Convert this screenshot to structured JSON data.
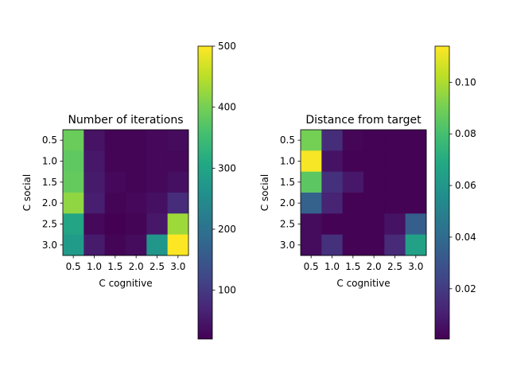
{
  "chart_data": [
    {
      "type": "heatmap",
      "title": "Number of iterations",
      "xlabel": "C cognitive",
      "ylabel": "C social",
      "x_ticks": [
        "0.5",
        "1.0",
        "1.5",
        "2.0",
        "2.5",
        "3.0"
      ],
      "y_ticks": [
        "0.5",
        "1.0",
        "1.5",
        "2.0",
        "2.5",
        "3.0"
      ],
      "colormap": "viridis",
      "colorbar": {
        "min": 20,
        "max": 500,
        "ticks": [
          100,
          200,
          300,
          400,
          500
        ],
        "tick_labels": [
          "100",
          "200",
          "300",
          "400",
          "500"
        ]
      },
      "values": [
        [
          390,
          45,
          25,
          25,
          30,
          35
        ],
        [
          380,
          50,
          25,
          25,
          30,
          30
        ],
        [
          385,
          55,
          30,
          25,
          30,
          40
        ],
        [
          420,
          60,
          25,
          30,
          40,
          80
        ],
        [
          300,
          30,
          20,
          25,
          50,
          430
        ],
        [
          280,
          55,
          25,
          35,
          270,
          500
        ]
      ]
    },
    {
      "type": "heatmap",
      "title": "Distance from target",
      "xlabel": "C cognitive",
      "ylabel": "C social",
      "x_ticks": [
        "0.5",
        "1.0",
        "1.5",
        "2.0",
        "2.5",
        "3.0"
      ],
      "y_ticks": [
        "0.5",
        "1.0",
        "1.5",
        "2.0",
        "2.5",
        "3.0"
      ],
      "colormap": "viridis",
      "colorbar": {
        "min": 0.0005,
        "max": 0.114,
        "ticks": [
          0.02,
          0.04,
          0.06,
          0.08,
          0.1
        ],
        "tick_labels": [
          "0.02",
          "0.04",
          "0.06",
          "0.08",
          "0.10"
        ]
      },
      "values": [
        [
          0.09,
          0.015,
          0.002,
          0.001,
          0.001,
          0.001
        ],
        [
          0.113,
          0.006,
          0.001,
          0.001,
          0.001,
          0.001
        ],
        [
          0.085,
          0.016,
          0.008,
          0.001,
          0.001,
          0.001
        ],
        [
          0.036,
          0.012,
          0.001,
          0.001,
          0.001,
          0.001
        ],
        [
          0.004,
          0.001,
          0.001,
          0.001,
          0.006,
          0.034
        ],
        [
          0.004,
          0.016,
          0.001,
          0.001,
          0.014,
          0.065
        ]
      ]
    }
  ]
}
